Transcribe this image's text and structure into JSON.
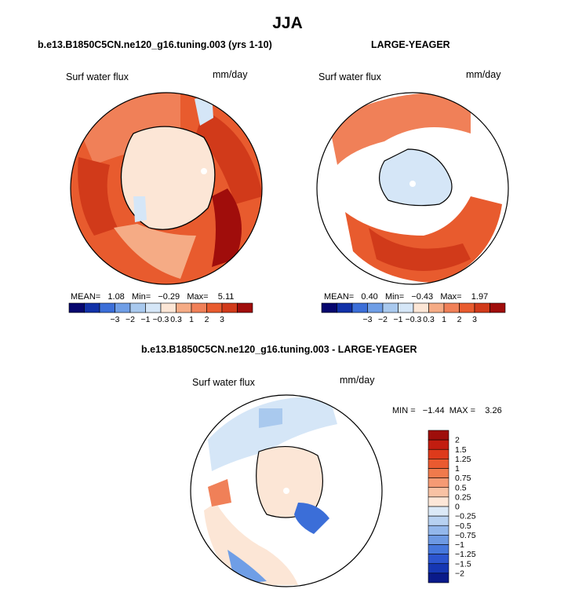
{
  "page_title": "JJA",
  "panels": {
    "left": {
      "case": "b.e13.B1850C5CN.ne120_g16.tuning.003 (yrs 1-10)",
      "variable": "Surf water flux",
      "units": "mm/day",
      "stats": {
        "mean_label": "MEAN=",
        "mean": "1.08",
        "min_label": "Min=",
        "min": "−0.29",
        "max_label": "Max=",
        "max": "5.11"
      }
    },
    "right": {
      "case": "LARGE-YEAGER",
      "variable": "Surf water flux",
      "units": "mm/day",
      "stats": {
        "mean_label": "MEAN=",
        "mean": "0.40",
        "min_label": "Min=",
        "min": "−0.43",
        "max_label": "Max=",
        "max": "1.97"
      }
    },
    "diff": {
      "case": "b.e13.B1850C5CN.ne120_g16.tuning.003 - LARGE-YEAGER",
      "variable": "Surf water flux",
      "units": "mm/day",
      "stats_text": "MIN =   −1.44  MAX =    3.26"
    }
  },
  "colors": {
    "dark_red": "#a00d0b",
    "red": "#d13a1a",
    "orange_red": "#e85b2e",
    "orange": "#f08058",
    "light_orange": "#f5ab85",
    "peach": "#fce6d6",
    "pale_blue": "#d5e6f7",
    "light_blue": "#a9c9ee",
    "mid_blue": "#6f9ee6",
    "blue": "#3b6ed8",
    "dark_blue": "#1131a8",
    "navy": "#06066e"
  },
  "chart_data": [
    {
      "type": "heatmap",
      "title": "b.e13.B1850C5CN.ne120_g16.tuning.003 (yrs 1-10)",
      "variable": "Surf water flux",
      "units": "mm/day",
      "projection": "north polar stereographic",
      "mean": 1.08,
      "min": -0.29,
      "max": 5.11,
      "colorbar": {
        "levels": [
          -3,
          -2,
          -1,
          -0.3,
          0.3,
          1,
          2,
          3
        ],
        "tick_labels": [
          "−3",
          "−2",
          "−1",
          "−0.3",
          "0.3",
          "1",
          "2",
          "3"
        ],
        "colors": [
          "#06066e",
          "#1131a8",
          "#3b6ed8",
          "#6f9ee6",
          "#a9c9ee",
          "#d5e6f7",
          "#fce6d6",
          "#f5ab85",
          "#f08058",
          "#e85b2e",
          "#d13a1a",
          "#a00d0b"
        ]
      },
      "summary": "Mostly positive (0.3 to 3 mm/day) over ocean; near-zero over central Arctic and land."
    },
    {
      "type": "heatmap",
      "title": "LARGE-YEAGER",
      "variable": "Surf water flux",
      "units": "mm/day",
      "projection": "north polar stereographic",
      "mean": 0.4,
      "min": -0.43,
      "max": 1.97,
      "colorbar": {
        "levels": [
          -3,
          -2,
          -1,
          -0.3,
          0.3,
          1,
          2,
          3
        ],
        "tick_labels": [
          "−3",
          "−2",
          "−1",
          "−0.3",
          "0.3",
          "1",
          "2",
          "3"
        ],
        "colors": [
          "#06066e",
          "#1131a8",
          "#3b6ed8",
          "#6f9ee6",
          "#a9c9ee",
          "#d5e6f7",
          "#fce6d6",
          "#f5ab85",
          "#f08058",
          "#e85b2e",
          "#d13a1a",
          "#a00d0b"
        ]
      },
      "summary": "Positive over subpolar oceans; slightly negative over central Arctic; land masked."
    },
    {
      "type": "heatmap",
      "title": "b.e13.B1850C5CN.ne120_g16.tuning.003 - LARGE-YEAGER",
      "variable": "Surf water flux",
      "units": "mm/day",
      "projection": "north polar stereographic",
      "min": -1.44,
      "max": 3.26,
      "colorbar": {
        "levels": [
          2,
          1.5,
          1.25,
          1,
          0.75,
          0.5,
          0.25,
          0,
          -0.25,
          -0.5,
          -0.75,
          -1,
          -1.25,
          -1.5,
          -2
        ],
        "tick_labels": [
          "2",
          "1.5",
          "1.25",
          "1",
          "0.75",
          "0.5",
          "0.25",
          "0",
          "−0.25",
          "−0.5",
          "−0.75",
          "−1",
          "−1.25",
          "−1.5",
          "−2"
        ],
        "colors": [
          "#9e0e0b",
          "#c21d10",
          "#dd3a1b",
          "#ea5a30",
          "#f07a4c",
          "#f59a74",
          "#f8c2a4",
          "#fde7d8",
          "#dbe9f7",
          "#b7d1f1",
          "#93b7eb",
          "#6d99e3",
          "#4677dc",
          "#2c55cf",
          "#1637b3",
          "#0a1a8a"
        ]
      },
      "summary": "Mostly weakly positive (0 to 0.25); negative patches over Nordic/Barents seas and North Pacific margins."
    }
  ]
}
